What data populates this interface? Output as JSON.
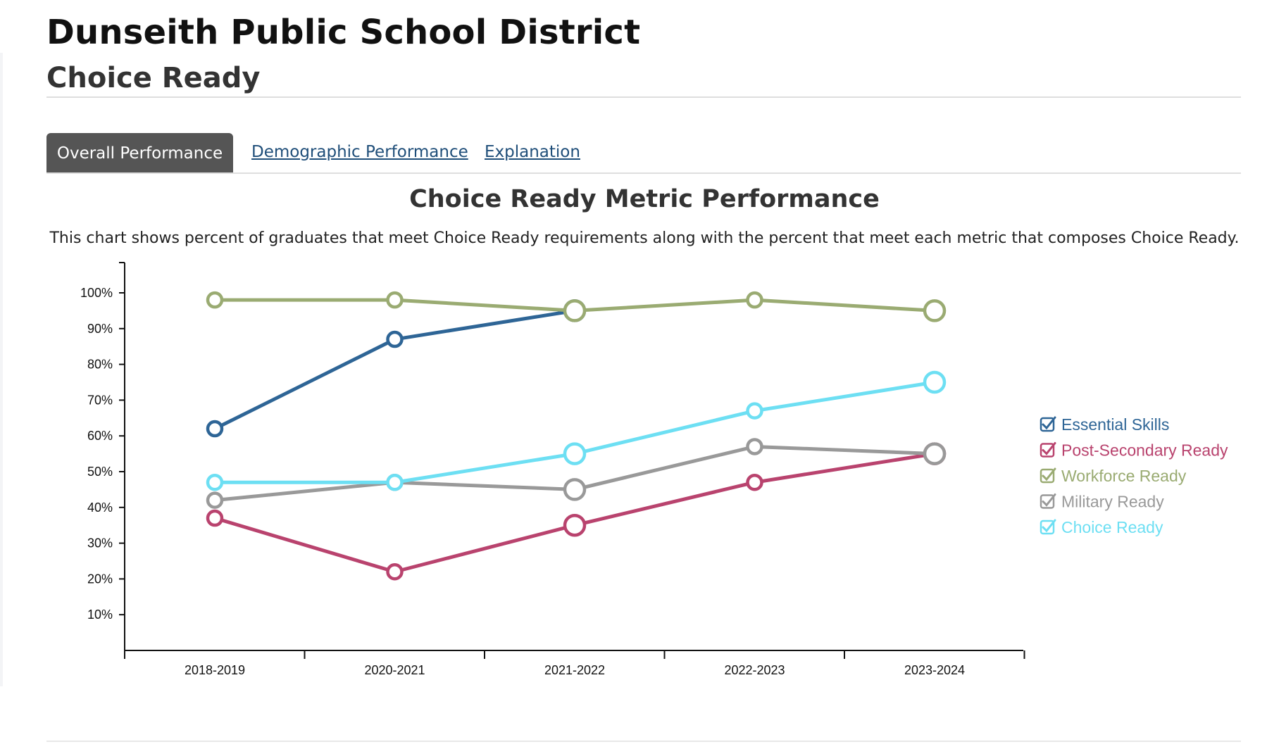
{
  "header": {
    "district": "Dunseith Public School District",
    "section": "Choice Ready"
  },
  "tabs": [
    {
      "label": "Overall Performance",
      "active": true
    },
    {
      "label": "Demographic Performance",
      "active": false
    },
    {
      "label": "Explanation",
      "active": false
    }
  ],
  "chart_data": {
    "type": "line",
    "title": "Choice Ready Metric Performance",
    "description": "This chart shows percent of graduates that meet Choice Ready requirements along with the percent that meet each metric that composes Choice Ready.",
    "categories": [
      "2018-2019",
      "2020-2021",
      "2021-2022",
      "2022-2023",
      "2023-2024"
    ],
    "yticks": [
      "10%",
      "20%",
      "30%",
      "40%",
      "50%",
      "60%",
      "70%",
      "80%",
      "90%",
      "100%"
    ],
    "ylim": [
      0,
      108
    ],
    "xlabel": "",
    "ylabel": "",
    "legend_position": "right",
    "series": [
      {
        "name": "Essential Skills",
        "color": "#2e6596",
        "values": [
          62,
          87,
          95,
          null,
          null
        ],
        "checked": true
      },
      {
        "name": "Post-Secondary Ready",
        "color": "#b9436e",
        "values": [
          37,
          22,
          35,
          47,
          55
        ],
        "checked": true
      },
      {
        "name": "Workforce Ready",
        "color": "#9aab72",
        "values": [
          98,
          98,
          95,
          98,
          95
        ],
        "checked": true
      },
      {
        "name": "Military Ready",
        "color": "#999999",
        "values": [
          42,
          47,
          45,
          57,
          55
        ],
        "checked": true
      },
      {
        "name": "Choice Ready",
        "color": "#6ddff3",
        "values": [
          47,
          47,
          55,
          67,
          75
        ],
        "checked": true
      }
    ]
  }
}
